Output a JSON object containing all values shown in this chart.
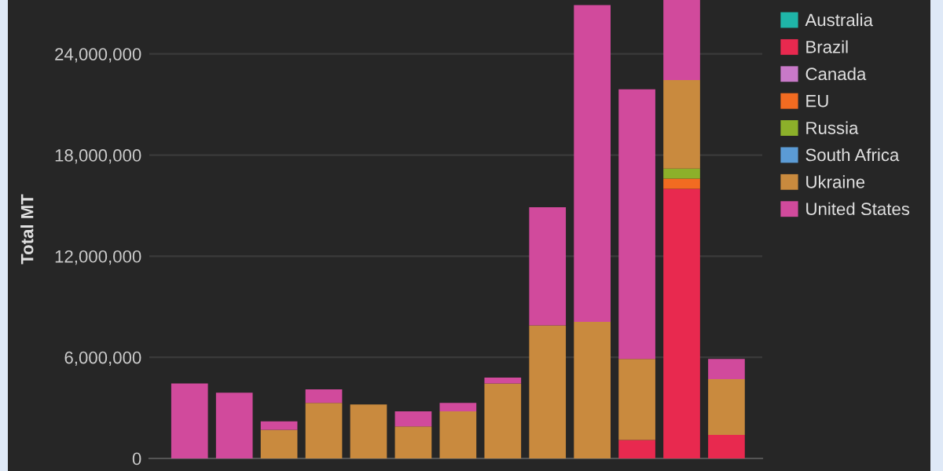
{
  "chart_data": {
    "type": "bar",
    "stacked": true,
    "ylabel": "Total MT",
    "categories": [
      null,
      null,
      null,
      null,
      null,
      null,
      null,
      null,
      null,
      null,
      null,
      null,
      null
    ],
    "series": [
      {
        "name": "Australia",
        "color": "#1fb5a8",
        "values": [
          null,
          null,
          null,
          null,
          null,
          null,
          null,
          null,
          null,
          null,
          null,
          null,
          null
        ]
      },
      {
        "name": "Brazil",
        "color": "#e8294f",
        "values": [
          null,
          null,
          null,
          null,
          null,
          null,
          null,
          null,
          null,
          null,
          1100000,
          16000000,
          1400000
        ]
      },
      {
        "name": "Canada",
        "color": "#c879c8",
        "values": [
          null,
          null,
          null,
          null,
          null,
          null,
          null,
          null,
          null,
          null,
          null,
          null,
          null
        ]
      },
      {
        "name": "EU",
        "color": "#f26b21",
        "values": [
          null,
          null,
          null,
          null,
          null,
          null,
          null,
          null,
          null,
          null,
          null,
          600000,
          null
        ]
      },
      {
        "name": "Russia",
        "color": "#8cb02a",
        "values": [
          null,
          null,
          null,
          null,
          null,
          null,
          null,
          null,
          null,
          null,
          null,
          600000,
          null
        ]
      },
      {
        "name": "South Africa",
        "color": "#5b9bd5",
        "values": [
          null,
          null,
          null,
          null,
          null,
          null,
          null,
          null,
          null,
          null,
          null,
          null,
          null
        ]
      },
      {
        "name": "Ukraine",
        "color": "#c98a3e",
        "values": [
          null,
          null,
          1700000,
          3300000,
          3200000,
          1900000,
          2800000,
          4450000,
          7900000,
          8100000,
          4800000,
          5250000,
          3300000
        ]
      },
      {
        "name": "United States",
        "color": "#d14a9c",
        "values": [
          4450000,
          3900000,
          500000,
          800000,
          null,
          900000,
          500000,
          350000,
          7000000,
          18800000,
          16000000,
          4750000,
          1200000
        ]
      }
    ],
    "ylim": [
      0,
      27200000
    ],
    "yticks": [
      {
        "value": 0,
        "label": "0"
      },
      {
        "value": 6000000,
        "label": "6,000,000"
      },
      {
        "value": 12000000,
        "label": "12,000,000"
      },
      {
        "value": 18000000,
        "label": "18,000,000"
      },
      {
        "value": 24000000,
        "label": "24,000,000"
      }
    ],
    "grid": "y",
    "legend": "right"
  }
}
